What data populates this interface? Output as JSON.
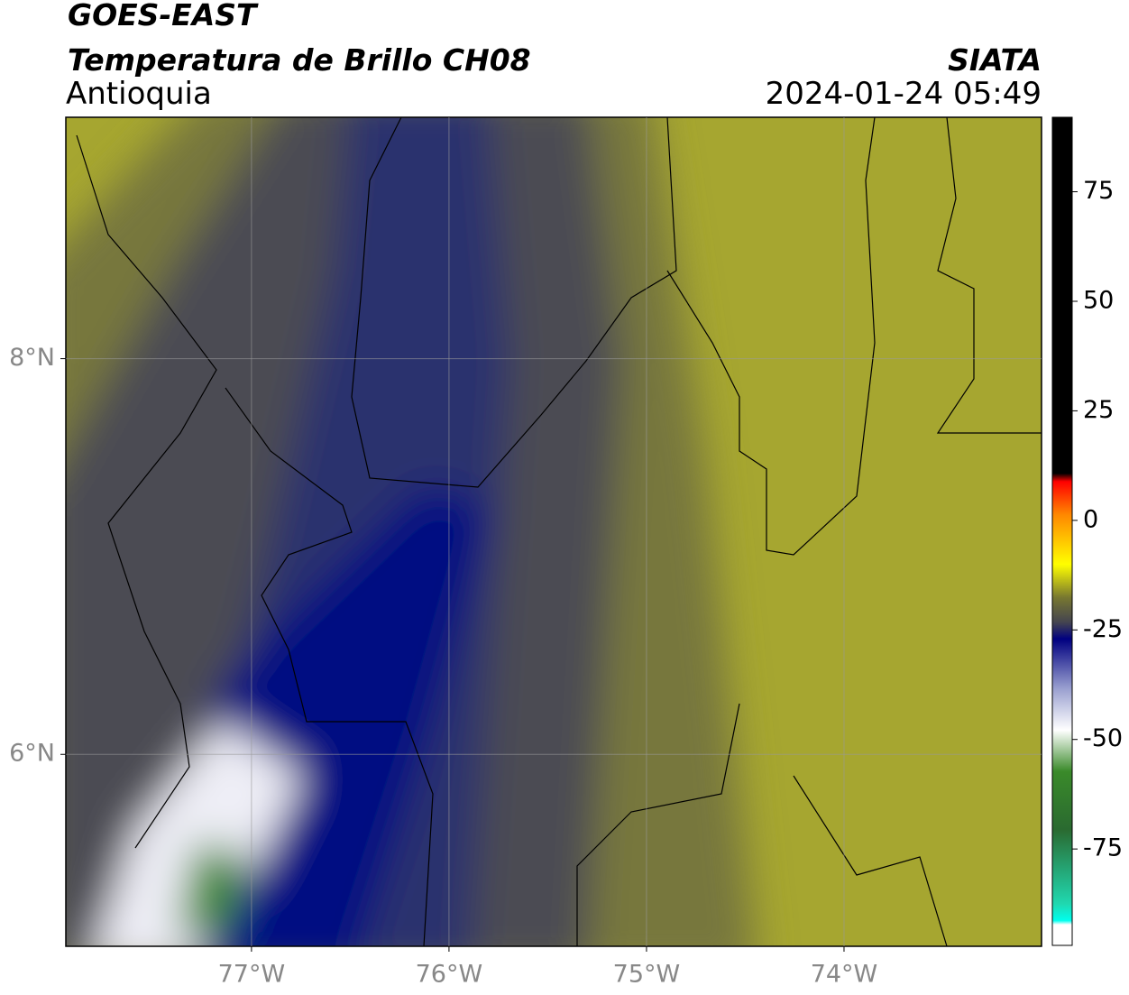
{
  "header": {
    "title": "GOES-EAST",
    "subtitle": "Temperatura de Brillo CH08",
    "region": "Antioquia",
    "source": "SIATA",
    "datetime": "2024-01-24 05:49"
  },
  "map": {
    "xlim": [
      -77.94,
      -73
    ],
    "ylim": [
      5.03,
      9.22
    ],
    "xticks": [
      {
        "value": -77,
        "label": "77°W"
      },
      {
        "value": -76,
        "label": "76°W"
      },
      {
        "value": -75,
        "label": "75°W"
      },
      {
        "value": -74,
        "label": "74°W"
      }
    ],
    "yticks": [
      {
        "value": 6,
        "label": "6°N"
      },
      {
        "value": 8,
        "label": "8°N"
      }
    ],
    "grid": true
  },
  "colorbar": {
    "ylim": [
      -97,
      92
    ],
    "yticks": [
      75,
      50,
      25,
      0,
      -25,
      -50,
      -75
    ]
  }
}
